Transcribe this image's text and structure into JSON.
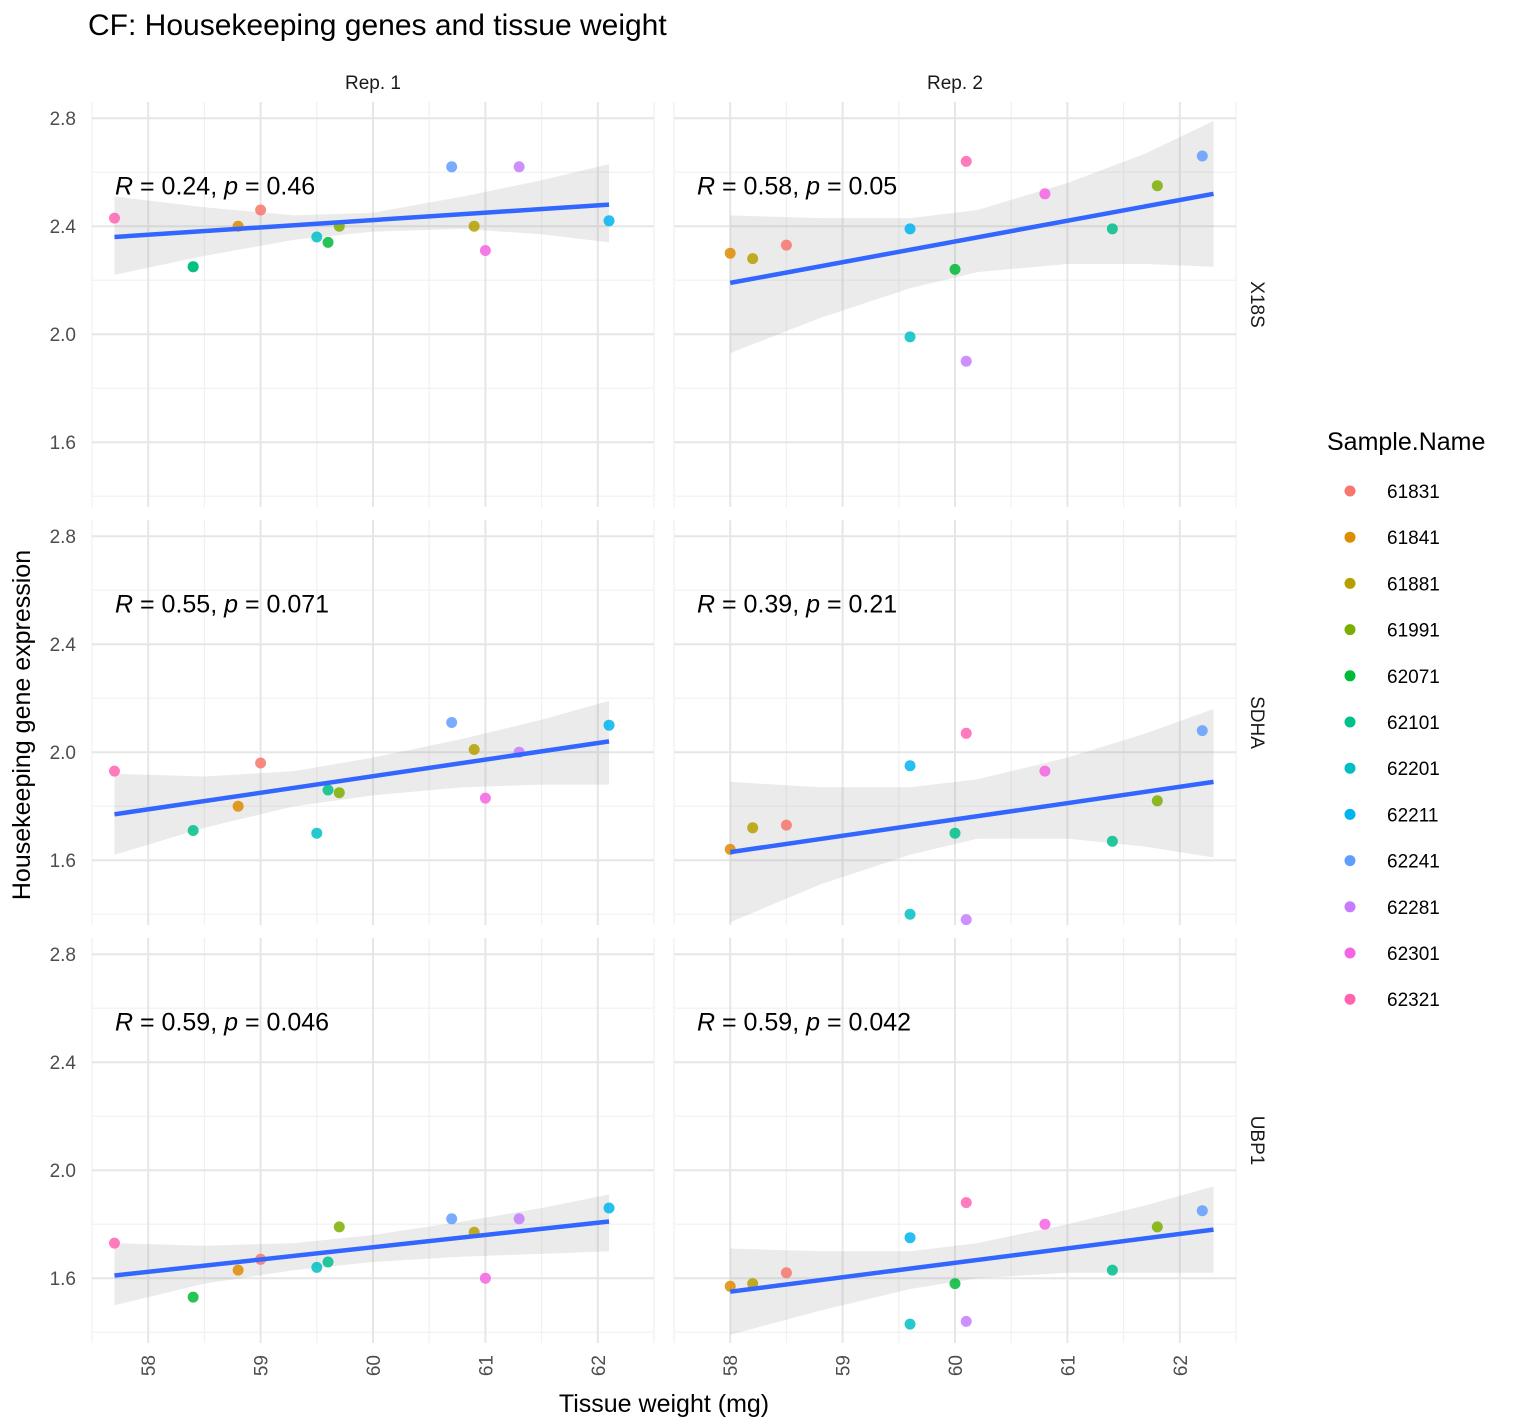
{
  "chart_data": {
    "type": "scatter",
    "title": "CF: Housekeeping genes and tissue weight",
    "xlabel": "Tissue weight (mg)",
    "ylabel": "Housekeeping gene expression",
    "legend_title": "Sample.Name",
    "legend_position": "right",
    "grid": true,
    "xlim": [
      57.5,
      62.5
    ],
    "ylim": [
      1.36,
      2.86
    ],
    "x_ticks": [
      58,
      59,
      60,
      61,
      62
    ],
    "y_ticks": [
      1.6,
      2.0,
      2.4,
      2.8
    ],
    "columns": [
      "Rep. 1",
      "Rep. 2"
    ],
    "rows": [
      "X18S",
      "SDHA",
      "UBP1"
    ],
    "series": [
      {
        "name": "61831",
        "color": "#F8766D"
      },
      {
        "name": "61841",
        "color": "#DE8C00"
      },
      {
        "name": "61881",
        "color": "#B79F00"
      },
      {
        "name": "61991",
        "color": "#7CAE00"
      },
      {
        "name": "62071",
        "color": "#00BA38"
      },
      {
        "name": "62101",
        "color": "#00C08B"
      },
      {
        "name": "62201",
        "color": "#00BFC4"
      },
      {
        "name": "62211",
        "color": "#00B4F0"
      },
      {
        "name": "62241",
        "color": "#619CFF"
      },
      {
        "name": "62281",
        "color": "#C77CFF"
      },
      {
        "name": "62301",
        "color": "#F564E3"
      },
      {
        "name": "62321",
        "color": "#FF64B0"
      }
    ],
    "panels": [
      {
        "row": 0,
        "col": 0,
        "r": "0.24",
        "p": "0.46",
        "fit": [
          [
            57.7,
            2.36
          ],
          [
            62.1,
            2.48
          ]
        ],
        "band_upper": [
          [
            57.7,
            2.51
          ],
          [
            58.5,
            2.47
          ],
          [
            59.3,
            2.44
          ],
          [
            60.0,
            2.45
          ],
          [
            60.8,
            2.51
          ],
          [
            61.5,
            2.57
          ],
          [
            62.1,
            2.63
          ]
        ],
        "band_lower": [
          [
            57.7,
            2.22
          ],
          [
            58.5,
            2.29
          ],
          [
            59.3,
            2.35
          ],
          [
            60.0,
            2.38
          ],
          [
            60.8,
            2.39
          ],
          [
            61.5,
            2.37
          ],
          [
            62.1,
            2.34
          ]
        ],
        "points": [
          {
            "s": "62321",
            "x": 57.7,
            "y": 2.43
          },
          {
            "s": "62071",
            "x": 58.4,
            "y": 2.25
          },
          {
            "s": "62101",
            "x": 58.4,
            "y": 2.25
          },
          {
            "s": "61841",
            "x": 58.8,
            "y": 2.4
          },
          {
            "s": "61831",
            "x": 59.0,
            "y": 2.46
          },
          {
            "s": "62201",
            "x": 59.5,
            "y": 2.36
          },
          {
            "s": "62071",
            "x": 59.6,
            "y": 2.34
          },
          {
            "s": "61991",
            "x": 59.7,
            "y": 2.4
          },
          {
            "s": "62241",
            "x": 60.7,
            "y": 2.62
          },
          {
            "s": "61881",
            "x": 60.9,
            "y": 2.4
          },
          {
            "s": "62301",
            "x": 61.0,
            "y": 2.31
          },
          {
            "s": "62281",
            "x": 61.3,
            "y": 2.62
          },
          {
            "s": "62211",
            "x": 62.1,
            "y": 2.42
          }
        ]
      },
      {
        "row": 0,
        "col": 1,
        "r": "0.58",
        "p": "0.05",
        "fit": [
          [
            58.0,
            2.19
          ],
          [
            62.3,
            2.52
          ]
        ],
        "band_upper": [
          [
            58.0,
            2.44
          ],
          [
            58.8,
            2.43
          ],
          [
            59.6,
            2.43
          ],
          [
            60.2,
            2.46
          ],
          [
            61.0,
            2.56
          ],
          [
            61.7,
            2.67
          ],
          [
            62.3,
            2.79
          ]
        ],
        "band_lower": [
          [
            58.0,
            1.93
          ],
          [
            58.8,
            2.06
          ],
          [
            59.6,
            2.17
          ],
          [
            60.2,
            2.23
          ],
          [
            61.0,
            2.26
          ],
          [
            61.7,
            2.26
          ],
          [
            62.3,
            2.25
          ]
        ],
        "points": [
          {
            "s": "61841",
            "x": 58.0,
            "y": 2.3
          },
          {
            "s": "61881",
            "x": 58.2,
            "y": 2.28
          },
          {
            "s": "61831",
            "x": 58.5,
            "y": 2.33
          },
          {
            "s": "62211",
            "x": 59.6,
            "y": 2.39
          },
          {
            "s": "62201",
            "x": 59.6,
            "y": 1.99
          },
          {
            "s": "62071",
            "x": 60.0,
            "y": 2.24
          },
          {
            "s": "62321",
            "x": 60.1,
            "y": 2.64
          },
          {
            "s": "62281",
            "x": 60.1,
            "y": 1.9
          },
          {
            "s": "62301",
            "x": 60.8,
            "y": 2.52
          },
          {
            "s": "62101",
            "x": 61.4,
            "y": 2.39
          },
          {
            "s": "61991",
            "x": 61.8,
            "y": 2.55
          },
          {
            "s": "62241",
            "x": 62.2,
            "y": 2.66
          }
        ]
      },
      {
        "row": 1,
        "col": 0,
        "r": "0.55",
        "p": "0.071",
        "fit": [
          [
            57.7,
            1.77
          ],
          [
            62.1,
            2.04
          ]
        ],
        "band_upper": [
          [
            57.7,
            1.92
          ],
          [
            58.5,
            1.91
          ],
          [
            59.3,
            1.93
          ],
          [
            60.0,
            1.98
          ],
          [
            60.8,
            2.05
          ],
          [
            61.5,
            2.12
          ],
          [
            62.1,
            2.19
          ]
        ],
        "band_lower": [
          [
            57.7,
            1.62
          ],
          [
            58.5,
            1.72
          ],
          [
            59.3,
            1.8
          ],
          [
            60.0,
            1.84
          ],
          [
            60.8,
            1.87
          ],
          [
            61.5,
            1.88
          ],
          [
            62.1,
            1.88
          ]
        ],
        "points": [
          {
            "s": "62321",
            "x": 57.7,
            "y": 1.93
          },
          {
            "s": "62101",
            "x": 58.4,
            "y": 1.71
          },
          {
            "s": "61841",
            "x": 58.8,
            "y": 1.8
          },
          {
            "s": "61831",
            "x": 59.0,
            "y": 1.96
          },
          {
            "s": "62201",
            "x": 59.5,
            "y": 1.7
          },
          {
            "s": "62101",
            "x": 59.6,
            "y": 1.86
          },
          {
            "s": "61991",
            "x": 59.7,
            "y": 1.85
          },
          {
            "s": "62241",
            "x": 60.7,
            "y": 2.11
          },
          {
            "s": "61881",
            "x": 60.9,
            "y": 2.01
          },
          {
            "s": "62281",
            "x": 61.3,
            "y": 2.0
          },
          {
            "s": "62301",
            "x": 61.0,
            "y": 1.83
          },
          {
            "s": "62211",
            "x": 62.1,
            "y": 2.1
          }
        ]
      },
      {
        "row": 1,
        "col": 1,
        "r": "0.39",
        "p": "0.21",
        "fit": [
          [
            58.0,
            1.63
          ],
          [
            62.3,
            1.89
          ]
        ],
        "band_upper": [
          [
            58.0,
            1.89
          ],
          [
            58.8,
            1.87
          ],
          [
            59.6,
            1.87
          ],
          [
            60.2,
            1.9
          ],
          [
            61.0,
            1.98
          ],
          [
            61.7,
            2.07
          ],
          [
            62.3,
            2.16
          ]
        ],
        "band_lower": [
          [
            58.0,
            1.37
          ],
          [
            58.8,
            1.51
          ],
          [
            59.6,
            1.62
          ],
          [
            60.2,
            1.68
          ],
          [
            61.0,
            1.68
          ],
          [
            61.7,
            1.65
          ],
          [
            62.3,
            1.61
          ]
        ],
        "points": [
          {
            "s": "61841",
            "x": 58.0,
            "y": 1.64
          },
          {
            "s": "61881",
            "x": 58.2,
            "y": 1.72
          },
          {
            "s": "61831",
            "x": 58.5,
            "y": 1.73
          },
          {
            "s": "62211",
            "x": 59.6,
            "y": 1.95
          },
          {
            "s": "62201",
            "x": 59.6,
            "y": 1.4
          },
          {
            "s": "62101",
            "x": 60.0,
            "y": 1.7
          },
          {
            "s": "62321",
            "x": 60.1,
            "y": 2.07
          },
          {
            "s": "62281",
            "x": 60.1,
            "y": 1.38
          },
          {
            "s": "62301",
            "x": 60.8,
            "y": 1.93
          },
          {
            "s": "62101",
            "x": 61.4,
            "y": 1.67
          },
          {
            "s": "61991",
            "x": 61.8,
            "y": 1.82
          },
          {
            "s": "62241",
            "x": 62.2,
            "y": 2.08
          }
        ]
      },
      {
        "row": 2,
        "col": 0,
        "r": "0.59",
        "p": "0.046",
        "fit": [
          [
            57.7,
            1.61
          ],
          [
            62.1,
            1.81
          ]
        ],
        "band_upper": [
          [
            57.7,
            1.73
          ],
          [
            58.5,
            1.72
          ],
          [
            59.3,
            1.73
          ],
          [
            60.0,
            1.76
          ],
          [
            60.8,
            1.81
          ],
          [
            61.5,
            1.86
          ],
          [
            62.1,
            1.91
          ]
        ],
        "band_lower": [
          [
            57.7,
            1.5
          ],
          [
            58.5,
            1.58
          ],
          [
            59.3,
            1.63
          ],
          [
            60.0,
            1.66
          ],
          [
            60.8,
            1.68
          ],
          [
            61.5,
            1.69
          ],
          [
            62.1,
            1.7
          ]
        ],
        "points": [
          {
            "s": "62321",
            "x": 57.7,
            "y": 1.73
          },
          {
            "s": "62071",
            "x": 58.4,
            "y": 1.53
          },
          {
            "s": "61841",
            "x": 58.8,
            "y": 1.63
          },
          {
            "s": "61831",
            "x": 59.0,
            "y": 1.67
          },
          {
            "s": "62201",
            "x": 59.5,
            "y": 1.64
          },
          {
            "s": "62101",
            "x": 59.6,
            "y": 1.66
          },
          {
            "s": "61991",
            "x": 59.7,
            "y": 1.79
          },
          {
            "s": "62241",
            "x": 60.7,
            "y": 1.82
          },
          {
            "s": "61881",
            "x": 60.9,
            "y": 1.77
          },
          {
            "s": "62301",
            "x": 61.0,
            "y": 1.6
          },
          {
            "s": "62281",
            "x": 61.3,
            "y": 1.82
          },
          {
            "s": "62211",
            "x": 62.1,
            "y": 1.86
          }
        ]
      },
      {
        "row": 2,
        "col": 1,
        "r": "0.59",
        "p": "0.042",
        "fit": [
          [
            58.0,
            1.55
          ],
          [
            62.3,
            1.78
          ]
        ],
        "band_upper": [
          [
            58.0,
            1.71
          ],
          [
            58.8,
            1.7
          ],
          [
            59.6,
            1.7
          ],
          [
            60.2,
            1.73
          ],
          [
            61.0,
            1.8
          ],
          [
            61.7,
            1.87
          ],
          [
            62.3,
            1.94
          ]
        ],
        "band_lower": [
          [
            58.0,
            1.39
          ],
          [
            58.8,
            1.48
          ],
          [
            59.6,
            1.56
          ],
          [
            60.2,
            1.6
          ],
          [
            61.0,
            1.62
          ],
          [
            61.7,
            1.62
          ],
          [
            62.3,
            1.62
          ]
        ],
        "points": [
          {
            "s": "61841",
            "x": 58.0,
            "y": 1.57
          },
          {
            "s": "61881",
            "x": 58.2,
            "y": 1.58
          },
          {
            "s": "61831",
            "x": 58.5,
            "y": 1.62
          },
          {
            "s": "62211",
            "x": 59.6,
            "y": 1.75
          },
          {
            "s": "62201",
            "x": 59.6,
            "y": 1.43
          },
          {
            "s": "62071",
            "x": 60.0,
            "y": 1.58
          },
          {
            "s": "62321",
            "x": 60.1,
            "y": 1.88
          },
          {
            "s": "62281",
            "x": 60.1,
            "y": 1.44
          },
          {
            "s": "62301",
            "x": 60.8,
            "y": 1.8
          },
          {
            "s": "62101",
            "x": 61.4,
            "y": 1.63
          },
          {
            "s": "61991",
            "x": 61.8,
            "y": 1.79
          },
          {
            "s": "62241",
            "x": 62.2,
            "y": 1.85
          }
        ]
      }
    ]
  }
}
